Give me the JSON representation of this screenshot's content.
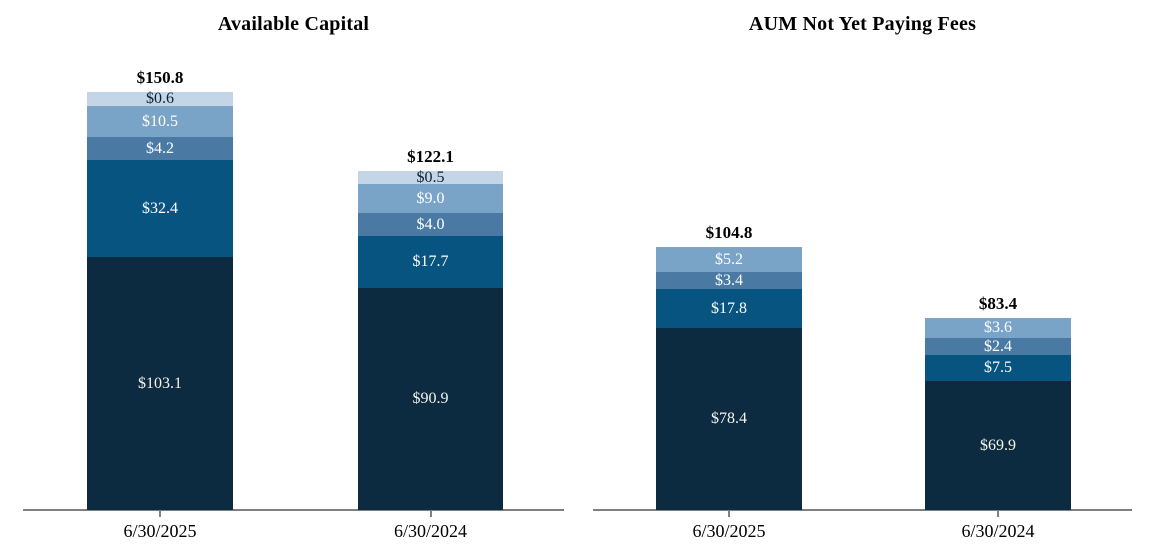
{
  "page": {
    "background": "#ffffff",
    "axis_color": "#808080"
  },
  "chart_data": [
    {
      "type": "stacked-bar",
      "title": "Available Capital",
      "value_prefix": "$",
      "categories": [
        "6/30/2025",
        "6/30/2024"
      ],
      "axis_color": "#808080",
      "legend": "none",
      "grid": "off",
      "palette_top_to_bottom": [
        {
          "name": "lightest-blue",
          "fill": "#c3d5e7",
          "text": "#0c2032"
        },
        {
          "name": "light-blue",
          "fill": "#7aa3c8",
          "text": "#ffffff"
        },
        {
          "name": "steel-blue",
          "fill": "#4a7aa3",
          "text": "#ffffff"
        },
        {
          "name": "medium-blue",
          "fill": "#075480",
          "text": "#ffffff"
        },
        {
          "name": "dark-navy",
          "fill": "#0c2b40",
          "text": "#f5f5ef"
        }
      ],
      "bars": [
        {
          "category": "6/30/2025",
          "total": 150.8,
          "total_label": "$150.8",
          "segments_top_to_bottom": [
            {
              "label": "$0.6",
              "value": 0.6
            },
            {
              "label": "$10.5",
              "value": 10.5
            },
            {
              "label": "$4.2",
              "value": 4.2
            },
            {
              "label": "$32.4",
              "value": 32.4
            },
            {
              "label": "$103.1",
              "value": 103.1
            }
          ]
        },
        {
          "category": "6/30/2024",
          "total": 122.1,
          "total_label": "$122.1",
          "segments_top_to_bottom": [
            {
              "label": "$0.5",
              "value": 0.5
            },
            {
              "label": "$9.0",
              "value": 9.0
            },
            {
              "label": "$4.0",
              "value": 4.0
            },
            {
              "label": "$17.7",
              "value": 17.7
            },
            {
              "label": "$90.9",
              "value": 90.9
            }
          ]
        }
      ]
    },
    {
      "type": "stacked-bar",
      "title": "AUM Not Yet Paying Fees",
      "value_prefix": "$",
      "categories": [
        "6/30/2025",
        "6/30/2024"
      ],
      "axis_color": "#808080",
      "legend": "none",
      "grid": "off",
      "palette_top_to_bottom": [
        {
          "name": "light-blue",
          "fill": "#7aa3c8",
          "text": "#ffffff"
        },
        {
          "name": "steel-blue",
          "fill": "#4a7aa3",
          "text": "#ffffff"
        },
        {
          "name": "medium-blue",
          "fill": "#075480",
          "text": "#ffffff"
        },
        {
          "name": "dark-navy",
          "fill": "#0c2b40",
          "text": "#f5f5ef"
        }
      ],
      "bars": [
        {
          "category": "6/30/2025",
          "total": 104.8,
          "total_label": "$104.8",
          "segments_top_to_bottom": [
            {
              "label": "$5.2",
              "value": 5.2
            },
            {
              "label": "$3.4",
              "value": 3.4
            },
            {
              "label": "$17.8",
              "value": 17.8
            },
            {
              "label": "$78.4",
              "value": 78.4
            }
          ]
        },
        {
          "category": "6/30/2024",
          "total": 83.4,
          "total_label": "$83.4",
          "segments_top_to_bottom": [
            {
              "label": "$3.6",
              "value": 3.6
            },
            {
              "label": "$2.4",
              "value": 2.4
            },
            {
              "label": "$7.5",
              "value": 7.5
            },
            {
              "label": "$69.9",
              "value": 69.9
            }
          ]
        }
      ]
    }
  ]
}
